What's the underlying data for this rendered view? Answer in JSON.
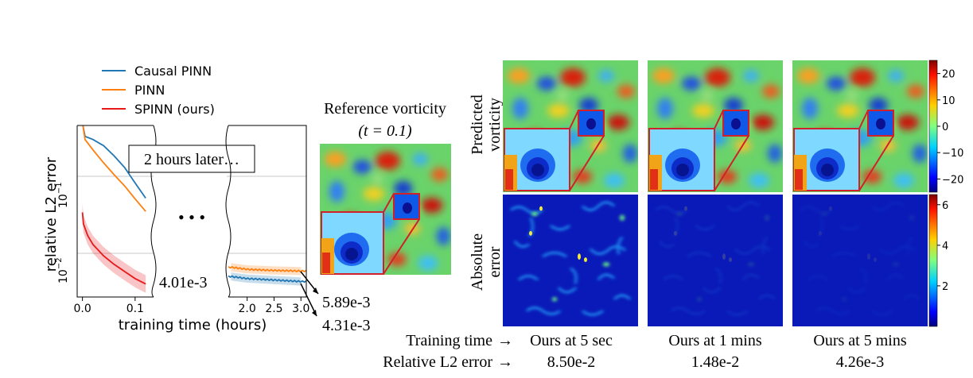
{
  "legend": {
    "items": [
      {
        "label": "Causal PINN",
        "color": "#1f77b4"
      },
      {
        "label": "PINN",
        "color": "#ff7f0e"
      },
      {
        "label": "SPINN (ours)",
        "color": "#e8191b"
      }
    ]
  },
  "chart_data": {
    "type": "line",
    "xlabel": "training time (hours)",
    "ylabel": "relative L2 error",
    "yscale": "log",
    "grid": "horizontal at 10^-1 and 10^-2",
    "left_panel": {
      "xlim": [
        -0.01,
        0.135
      ],
      "xticks": [
        "0.0",
        "0.1"
      ],
      "series": [
        {
          "name": "Causal PINN",
          "color": "#1f77b4",
          "x": [
            0.0,
            0.005,
            0.02,
            0.04,
            0.06,
            0.08,
            0.1,
            0.12
          ],
          "y": [
            0.49,
            0.33,
            0.3,
            0.25,
            0.185,
            0.13,
            0.082,
            0.052
          ]
        },
        {
          "name": "PINN",
          "color": "#ff7f0e",
          "x": [
            0.0,
            0.005,
            0.02,
            0.04,
            0.06,
            0.08,
            0.1,
            0.12
          ],
          "y": [
            0.5,
            0.3,
            0.22,
            0.15,
            0.105,
            0.075,
            0.051,
            0.035
          ]
        },
        {
          "name": "SPINN (ours)",
          "color": "#e8191b",
          "x": [
            0.0,
            0.002,
            0.01,
            0.02,
            0.04,
            0.06,
            0.08,
            0.1,
            0.12
          ],
          "y": [
            0.034,
            0.024,
            0.017,
            0.013,
            0.0093,
            0.0072,
            0.0058,
            0.0047,
            0.004
          ],
          "band": 0.3
        }
      ],
      "annotation": "4.01e-3"
    },
    "right_panel": {
      "xlim": [
        1.65,
        3.1
      ],
      "xticks": [
        "2.0",
        "2.5",
        "3.0"
      ],
      "series": [
        {
          "name": "PINN",
          "color": "#ff7f0e",
          "x": [
            1.7,
            2.0,
            2.5,
            3.0
          ],
          "y": [
            0.0066,
            0.0062,
            0.006,
            0.00589
          ]
        },
        {
          "name": "Causal PINN",
          "color": "#1f77b4",
          "x": [
            1.7,
            2.0,
            2.5,
            3.0
          ],
          "y": [
            0.005,
            0.0047,
            0.0045,
            0.00431
          ]
        }
      ],
      "annotations": [
        "5.89e-3",
        "4.31e-3"
      ]
    },
    "left_tick_labels": [
      "10",
      "10"
    ],
    "left_tick_exponents": [
      "−1",
      "−2"
    ],
    "ellipsis": "• • •",
    "callout": "2 hours later…"
  },
  "reference": {
    "title_line1": "Reference vorticity",
    "title_line2": "(t = 0.1)"
  },
  "row_labels": {
    "predicted_line1": "Predicted",
    "predicted_line2": "vorticity",
    "error_line1": "Absolute",
    "error_line2": "error"
  },
  "colorbars": {
    "vorticity": {
      "ticks": [
        "20",
        "10",
        "0",
        "−10",
        "−20"
      ],
      "min": -25,
      "max": 25
    },
    "error": {
      "ticks": [
        "6",
        "4",
        "2"
      ],
      "min": 0,
      "max": 6.5
    }
  },
  "table": {
    "row1_label": "Training time",
    "row2_label": "Relative L2 error",
    "arrow": "→",
    "columns": [
      {
        "time": "Ours at 5 sec",
        "error": "8.50e-2",
        "err_level": 1.0
      },
      {
        "time": "Ours at 1 mins",
        "error": "1.48e-2",
        "err_level": 0.18
      },
      {
        "time": "Ours at 5 mins",
        "error": "4.26e-3",
        "err_level": 0.1
      }
    ]
  }
}
